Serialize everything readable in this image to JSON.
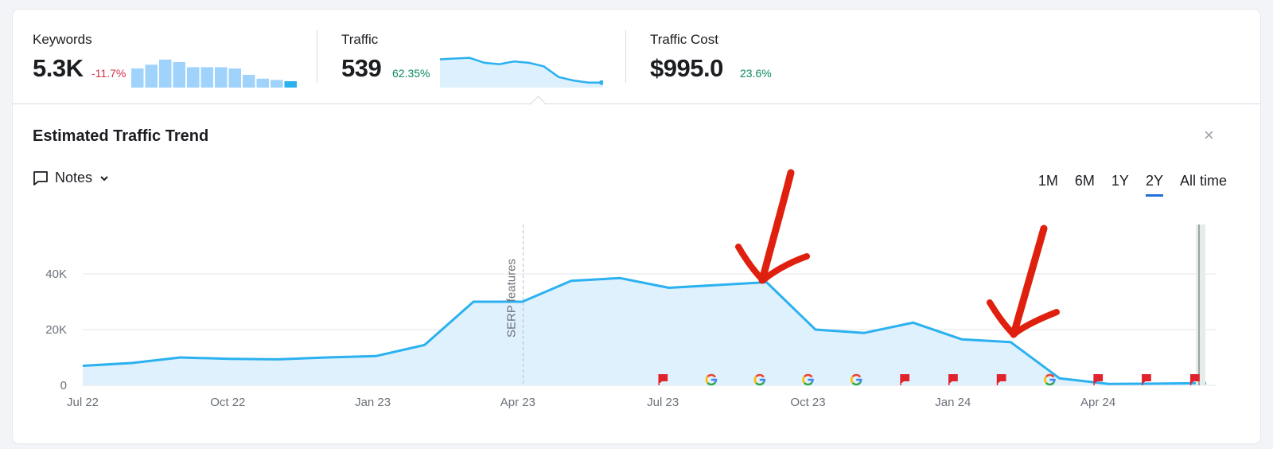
{
  "metrics": [
    {
      "label": "Keywords",
      "value": "5.3K",
      "delta": "-11.7%",
      "delta_dir": "neg",
      "spark": [
        65,
        68,
        72,
        70,
        66,
        66,
        66,
        65,
        60,
        57,
        56,
        55
      ],
      "spark_type": "bar"
    },
    {
      "label": "Traffic",
      "value": "539",
      "delta": "62.35%",
      "delta_dir": "pos",
      "spark": [
        95,
        96,
        97,
        90,
        88,
        92,
        90,
        85,
        70,
        65,
        62,
        62
      ],
      "spark_type": "area"
    },
    {
      "label": "Traffic Cost",
      "value": "$995.0",
      "delta": "23.6%",
      "delta_dir": "pos"
    }
  ],
  "panel": {
    "title": "Estimated Traffic Trend",
    "notes_label": "Notes",
    "close_icon": "×",
    "ranges": [
      "1M",
      "6M",
      "1Y",
      "2Y",
      "All time"
    ],
    "active_range": "2Y"
  },
  "chart_data": {
    "type": "area",
    "y_ticks": [
      {
        "v": 0,
        "label": "0"
      },
      {
        "v": 20000,
        "label": "20K"
      },
      {
        "v": 40000,
        "label": "40K"
      }
    ],
    "ylim": [
      0,
      40000
    ],
    "x_ticks": [
      "Jul 22",
      "Oct 22",
      "Jan 23",
      "Apr 23",
      "Jul 23",
      "Oct 23",
      "Jan 24",
      "Apr 24"
    ],
    "series": [
      {
        "color": "#2bb1f0",
        "values": [
          7000,
          8000,
          10000,
          9500,
          9300,
          10000,
          10500,
          14500,
          30000,
          30000,
          37500,
          38500,
          35000,
          36000,
          37000,
          20000,
          18800,
          22500,
          16500,
          15500,
          2500,
          500,
          600,
          800
        ]
      }
    ],
    "annotation": {
      "label": "SERP features",
      "x_index": 9
    },
    "markers": [
      {
        "type": "flag",
        "tick": 4
      },
      {
        "type": "google",
        "tick": 4.333
      },
      {
        "type": "google",
        "tick": 4.667
      },
      {
        "type": "google",
        "tick": 5
      },
      {
        "type": "google",
        "tick": 5.333
      },
      {
        "type": "flag",
        "tick": 5.667
      },
      {
        "type": "flag",
        "tick": 6
      },
      {
        "type": "flag",
        "tick": 6.333
      },
      {
        "type": "google",
        "tick": 6.667
      },
      {
        "type": "flag",
        "tick": 7
      },
      {
        "type": "flag",
        "tick": 7.333
      },
      {
        "type": "flag",
        "tick": 7.667
      }
    ],
    "overlay_arrows": 2
  }
}
